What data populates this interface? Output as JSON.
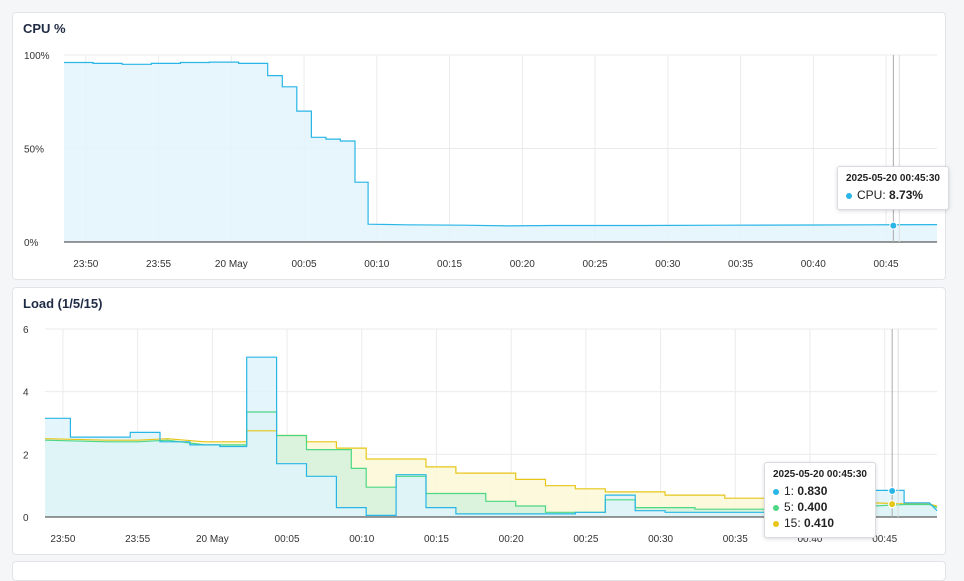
{
  "chart_data": [
    {
      "type": "area",
      "title": "CPU %",
      "xlabel": "",
      "ylabel": "",
      "x_ticks": [
        "23:50",
        "23:55",
        "20 May",
        "00:05",
        "00:10",
        "00:15",
        "00:20",
        "00:25",
        "00:30",
        "00:35",
        "00:40",
        "00:45"
      ],
      "y_ticks": [
        "0%",
        "50%",
        "100%"
      ],
      "xlim_minutes": [
        -11.5,
        48.5
      ],
      "ylim": [
        0,
        100
      ],
      "grid": true,
      "series": [
        {
          "color": "#29b6e6",
          "fill": "#e3f4fc",
          "points": [
            [
              -11.5,
              96
            ],
            [
              -9.5,
              96
            ],
            [
              -9.5,
              95.5
            ],
            [
              -7.5,
              95.5
            ],
            [
              -7.5,
              95
            ],
            [
              -5.5,
              95
            ],
            [
              -5.5,
              95.5
            ],
            [
              -3.5,
              95.5
            ],
            [
              -3.5,
              96
            ],
            [
              -1.5,
              96
            ],
            [
              -1.5,
              96.2
            ],
            [
              0.5,
              96.2
            ],
            [
              0.5,
              95.5
            ],
            [
              2.5,
              95.5
            ],
            [
              2.5,
              89
            ],
            [
              3.5,
              89
            ],
            [
              3.5,
              83
            ],
            [
              4.5,
              83
            ],
            [
              4.5,
              70
            ],
            [
              5.5,
              70
            ],
            [
              5.5,
              56
            ],
            [
              6.5,
              56
            ],
            [
              6.5,
              55
            ],
            [
              7.5,
              55
            ],
            [
              7.5,
              54
            ],
            [
              8.5,
              54
            ],
            [
              8.5,
              32
            ],
            [
              9.4,
              32
            ],
            [
              9.4,
              9.5
            ],
            [
              12,
              9.2
            ],
            [
              16,
              9
            ],
            [
              19,
              8.6
            ],
            [
              22,
              8.8
            ],
            [
              28,
              8.8
            ],
            [
              34,
              9
            ],
            [
              40,
              9.1
            ],
            [
              44,
              9.2
            ],
            [
              48.5,
              9.3
            ]
          ]
        }
      ],
      "tooltip": {
        "time": "2025-05-20 00:45:30",
        "x": 45.5,
        "entries": [
          {
            "label": "CPU",
            "value": "8.73%",
            "y": 8.73,
            "color": "#29b6e6"
          }
        ]
      }
    },
    {
      "type": "area",
      "title": "Load (1/5/15)",
      "xlabel": "",
      "ylabel": "",
      "x_ticks": [
        "23:50",
        "23:55",
        "20 May",
        "00:05",
        "00:10",
        "00:15",
        "00:20",
        "00:25",
        "00:30",
        "00:35",
        "00:40",
        "00:45"
      ],
      "y_ticks": [
        "0",
        "2",
        "4",
        "6"
      ],
      "xlim_minutes": [
        -11.2,
        48.5
      ],
      "ylim": [
        0,
        6
      ],
      "grid": true,
      "series": [
        {
          "name": "15",
          "color": "#e6c619",
          "fill": "#fdf8d7",
          "points": [
            [
              -11.2,
              2.5
            ],
            [
              -7,
              2.45
            ],
            [
              -5,
              2.45
            ],
            [
              -3,
              2.5
            ],
            [
              -0.5,
              2.4
            ],
            [
              2.3,
              2.4
            ],
            [
              2.3,
              2.75
            ],
            [
              4.3,
              2.75
            ],
            [
              4.3,
              2.6
            ],
            [
              6.3,
              2.6
            ],
            [
              6.3,
              2.4
            ],
            [
              8.3,
              2.4
            ],
            [
              8.3,
              2.2
            ],
            [
              10.3,
              2.2
            ],
            [
              10.3,
              1.85
            ],
            [
              14.3,
              1.85
            ],
            [
              14.3,
              1.6
            ],
            [
              16.3,
              1.6
            ],
            [
              16.3,
              1.4
            ],
            [
              20.3,
              1.4
            ],
            [
              20.3,
              1.2
            ],
            [
              22.3,
              1.2
            ],
            [
              22.3,
              1.0
            ],
            [
              24.3,
              1.0
            ],
            [
              24.3,
              0.9
            ],
            [
              26.3,
              0.9
            ],
            [
              26.3,
              0.8
            ],
            [
              30.3,
              0.8
            ],
            [
              30.3,
              0.7
            ],
            [
              34.3,
              0.7
            ],
            [
              34.3,
              0.6
            ],
            [
              38.3,
              0.6
            ],
            [
              38.3,
              0.5
            ],
            [
              42.3,
              0.5
            ],
            [
              44.3,
              0.45
            ],
            [
              46.3,
              0.42
            ],
            [
              48,
              0.41
            ],
            [
              48.5,
              0.35
            ]
          ]
        },
        {
          "name": "5",
          "color": "#4ed884",
          "fill": "#d5f2dc",
          "points": [
            [
              -11.2,
              2.45
            ],
            [
              -7,
              2.4
            ],
            [
              -5,
              2.4
            ],
            [
              -3,
              2.45
            ],
            [
              -0.5,
              2.3
            ],
            [
              2.3,
              2.3
            ],
            [
              2.3,
              3.35
            ],
            [
              4.3,
              3.35
            ],
            [
              4.3,
              2.6
            ],
            [
              6.3,
              2.6
            ],
            [
              6.3,
              2.15
            ],
            [
              9.3,
              2.15
            ],
            [
              9.3,
              1.55
            ],
            [
              10.3,
              1.55
            ],
            [
              10.3,
              0.95
            ],
            [
              12.3,
              0.95
            ],
            [
              12.3,
              1.3
            ],
            [
              14.3,
              1.3
            ],
            [
              14.3,
              0.75
            ],
            [
              18.3,
              0.75
            ],
            [
              18.3,
              0.5
            ],
            [
              20.3,
              0.5
            ],
            [
              20.3,
              0.35
            ],
            [
              22.3,
              0.35
            ],
            [
              22.3,
              0.15
            ],
            [
              26.3,
              0.15
            ],
            [
              26.3,
              0.55
            ],
            [
              28.3,
              0.55
            ],
            [
              28.3,
              0.3
            ],
            [
              32.3,
              0.3
            ],
            [
              32.3,
              0.25
            ],
            [
              38.3,
              0.25
            ],
            [
              38.3,
              0.3
            ],
            [
              42.3,
              0.3
            ],
            [
              44.3,
              0.35
            ],
            [
              46.3,
              0.4
            ],
            [
              48,
              0.4
            ],
            [
              48.5,
              0.3
            ]
          ]
        },
        {
          "name": "1",
          "color": "#29b6e6",
          "fill": "#dff3fb",
          "points": [
            [
              -11.2,
              3.15
            ],
            [
              -9.5,
              3.15
            ],
            [
              -9.5,
              2.55
            ],
            [
              -5.5,
              2.55
            ],
            [
              -5.5,
              2.7
            ],
            [
              -3.5,
              2.7
            ],
            [
              -3.5,
              2.4
            ],
            [
              -1.5,
              2.4
            ],
            [
              -1.5,
              2.3
            ],
            [
              0.5,
              2.3
            ],
            [
              0.5,
              2.25
            ],
            [
              2.3,
              2.25
            ],
            [
              2.3,
              5.1
            ],
            [
              4.3,
              5.1
            ],
            [
              4.3,
              1.7
            ],
            [
              6.3,
              1.7
            ],
            [
              6.3,
              1.3
            ],
            [
              8.3,
              1.3
            ],
            [
              8.3,
              0.3
            ],
            [
              10.3,
              0.3
            ],
            [
              10.3,
              0.05
            ],
            [
              12.3,
              0.05
            ],
            [
              12.3,
              1.35
            ],
            [
              14.3,
              1.35
            ],
            [
              14.3,
              0.3
            ],
            [
              16.3,
              0.3
            ],
            [
              16.3,
              0.1
            ],
            [
              24.3,
              0.1
            ],
            [
              24.3,
              0.15
            ],
            [
              26.3,
              0.15
            ],
            [
              26.3,
              0.7
            ],
            [
              28.3,
              0.7
            ],
            [
              28.3,
              0.2
            ],
            [
              30.3,
              0.2
            ],
            [
              30.3,
              0.15
            ],
            [
              42.3,
              0.15
            ],
            [
              42.3,
              0.2
            ],
            [
              44.3,
              0.2
            ],
            [
              44.3,
              0.85
            ],
            [
              46.3,
              0.85
            ],
            [
              46.3,
              0.45
            ],
            [
              48,
              0.45
            ],
            [
              48.5,
              0.2
            ]
          ]
        }
      ],
      "tooltip": {
        "time": "2025-05-20 00:45:30",
        "x": 45.5,
        "entries": [
          {
            "label": "1",
            "value": "0.830",
            "y": 0.83,
            "color": "#29b6e6"
          },
          {
            "label": "5",
            "value": "0.400",
            "y": 0.4,
            "color": "#4ed884"
          },
          {
            "label": "15",
            "value": "0.410",
            "y": 0.41,
            "color": "#e6c619"
          }
        ]
      }
    }
  ]
}
